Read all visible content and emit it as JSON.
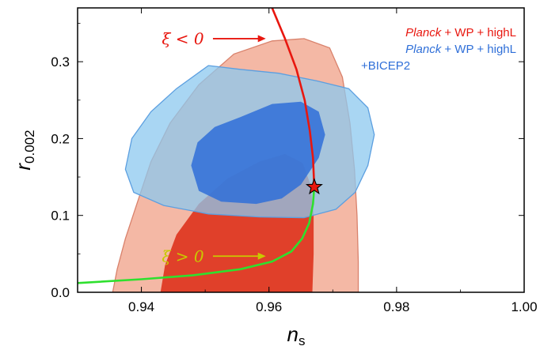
{
  "chart_data": {
    "type": "contour",
    "xlabel": "n",
    "xlabel_sub": "s",
    "ylabel": "r",
    "ylabel_sub": "0.002",
    "xlim": [
      0.93,
      1.0
    ],
    "ylim": [
      0.0,
      0.37
    ],
    "xticks": [
      "0.94",
      "0.96",
      "0.98",
      "1.00"
    ],
    "xtick_values": [
      0.94,
      0.96,
      0.98,
      1.0
    ],
    "yticks": [
      "0.0",
      "0.1",
      "0.2",
      "0.3"
    ],
    "ytick_values": [
      0.0,
      0.1,
      0.2,
      0.3
    ],
    "legend": {
      "placement": "top-right",
      "entries": [
        {
          "italic": "Planck",
          "rest": " + WP + highL",
          "line2": "",
          "color": "#e8170f"
        },
        {
          "italic": "Planck",
          "rest": " + WP + highL",
          "line2": "+BICEP2",
          "color": "#2f6fd8"
        }
      ]
    },
    "series": [
      {
        "name": "Planck + WP + highL",
        "color_68": "#e0402a",
        "color_95": "#f4b8a5",
        "contour_95": [
          [
            0.9355,
            0.0
          ],
          [
            0.9362,
            0.03
          ],
          [
            0.9375,
            0.07
          ],
          [
            0.9395,
            0.12
          ],
          [
            0.9415,
            0.17
          ],
          [
            0.9445,
            0.22
          ],
          [
            0.949,
            0.27
          ],
          [
            0.9545,
            0.31
          ],
          [
            0.9605,
            0.327
          ],
          [
            0.9655,
            0.33
          ],
          [
            0.9695,
            0.318
          ],
          [
            0.9715,
            0.28
          ],
          [
            0.9727,
            0.22
          ],
          [
            0.9734,
            0.16
          ],
          [
            0.9738,
            0.1
          ],
          [
            0.974,
            0.04
          ],
          [
            0.974,
            0.0
          ]
        ],
        "contour_68": [
          [
            0.943,
            0.0
          ],
          [
            0.9437,
            0.035
          ],
          [
            0.9455,
            0.075
          ],
          [
            0.949,
            0.115
          ],
          [
            0.9535,
            0.148
          ],
          [
            0.9585,
            0.17
          ],
          [
            0.9625,
            0.18
          ],
          [
            0.9653,
            0.168
          ],
          [
            0.9665,
            0.14
          ],
          [
            0.967,
            0.1
          ],
          [
            0.967,
            0.05
          ],
          [
            0.9668,
            0.0
          ]
        ]
      },
      {
        "name": "Planck + WP + highL +BICEP2",
        "color_68": "#2f6fd8",
        "color_95": "#8cc8ef",
        "contour_95": [
          [
            0.9505,
            0.295
          ],
          [
            0.9555,
            0.29
          ],
          [
            0.9615,
            0.285
          ],
          [
            0.9675,
            0.275
          ],
          [
            0.9725,
            0.265
          ],
          [
            0.9755,
            0.24
          ],
          [
            0.9765,
            0.205
          ],
          [
            0.9755,
            0.165
          ],
          [
            0.9735,
            0.13
          ],
          [
            0.9705,
            0.108
          ],
          [
            0.9655,
            0.097
          ],
          [
            0.9585,
            0.098
          ],
          [
            0.9505,
            0.102
          ],
          [
            0.9435,
            0.113
          ],
          [
            0.9388,
            0.13
          ],
          [
            0.9375,
            0.16
          ],
          [
            0.9385,
            0.2
          ],
          [
            0.9415,
            0.235
          ],
          [
            0.9455,
            0.265
          ],
          [
            0.9505,
            0.295
          ]
        ],
        "contour_68": [
          [
            0.9555,
            0.228
          ],
          [
            0.9605,
            0.245
          ],
          [
            0.965,
            0.248
          ],
          [
            0.9678,
            0.235
          ],
          [
            0.9688,
            0.205
          ],
          [
            0.9678,
            0.175
          ],
          [
            0.965,
            0.14
          ],
          [
            0.962,
            0.122
          ],
          [
            0.958,
            0.115
          ],
          [
            0.9525,
            0.118
          ],
          [
            0.949,
            0.132
          ],
          [
            0.9478,
            0.165
          ],
          [
            0.9488,
            0.195
          ],
          [
            0.9515,
            0.215
          ],
          [
            0.9555,
            0.228
          ]
        ]
      }
    ],
    "curves": [
      {
        "name": "xi<0",
        "color": "#e8170f",
        "points": [
          [
            0.9605,
            0.37
          ],
          [
            0.9625,
            0.33
          ],
          [
            0.9643,
            0.29
          ],
          [
            0.9656,
            0.25
          ],
          [
            0.9664,
            0.21
          ],
          [
            0.9669,
            0.175
          ],
          [
            0.9671,
            0.137
          ]
        ]
      },
      {
        "name": "xi>0",
        "color": "#2ee02e",
        "points": [
          [
            0.9671,
            0.137
          ],
          [
            0.9669,
            0.115
          ],
          [
            0.9663,
            0.09
          ],
          [
            0.9652,
            0.07
          ],
          [
            0.9635,
            0.053
          ],
          [
            0.9605,
            0.04
          ],
          [
            0.9555,
            0.03
          ],
          [
            0.948,
            0.022
          ],
          [
            0.94,
            0.017
          ],
          [
            0.93,
            0.012
          ]
        ]
      }
    ],
    "marker": {
      "shape": "star",
      "x": 0.9671,
      "y": 0.137,
      "color": "#e8170f"
    },
    "annotations": [
      {
        "text": "ξ < 0",
        "color": "#e8170f",
        "x": 0.9465,
        "y": 0.33,
        "arrow_to": [
          0.9595,
          0.33
        ]
      },
      {
        "text": "ξ > 0",
        "color": "#c9c900",
        "x": 0.9465,
        "y": 0.047,
        "arrow_to": [
          0.9595,
          0.047
        ]
      }
    ]
  }
}
